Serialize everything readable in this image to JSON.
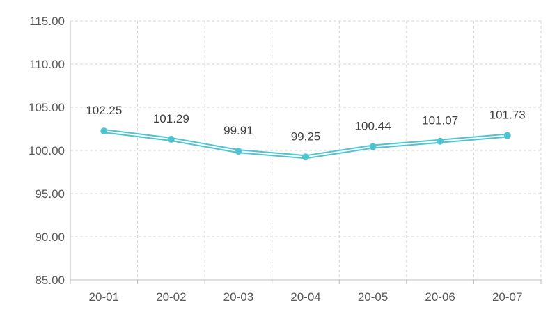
{
  "chart_data": {
    "type": "line",
    "title": "",
    "xlabel": "",
    "ylabel": "",
    "categories": [
      "20-01",
      "20-02",
      "20-03",
      "20-04",
      "20-05",
      "20-06",
      "20-07"
    ],
    "series": [
      {
        "values": [
          102.25,
          101.29,
          99.91,
          99.25,
          100.44,
          101.07,
          101.73
        ],
        "color": "#4fc3cf"
      }
    ],
    "data_labels": [
      "102.25",
      "101.29",
      "99.91",
      "99.25",
      "100.44",
      "101.07",
      "101.73"
    ],
    "ylim": [
      85,
      115
    ],
    "y_ticks": [
      "115.00",
      "110.00",
      "105.00",
      "100.00",
      "95.00",
      "90.00",
      "85.00"
    ],
    "grid": true,
    "legend": "none",
    "line_style": "double"
  }
}
